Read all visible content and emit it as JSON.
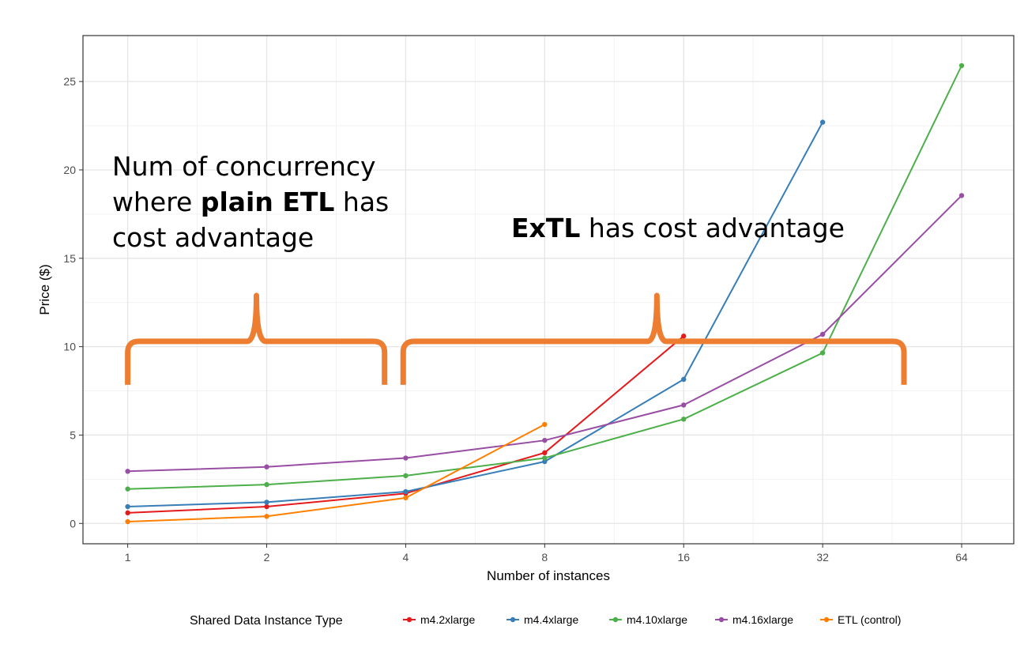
{
  "chart_data": {
    "type": "line",
    "x_scale": "log2",
    "xlabel": "Number of instances",
    "ylabel": "Price ($)",
    "x_ticks": [
      1,
      2,
      4,
      8,
      16,
      32,
      64
    ],
    "y_ticks": [
      0,
      5,
      10,
      15,
      20,
      25
    ],
    "xlim": [
      0.8,
      83
    ],
    "ylim": [
      -1.15,
      27.6
    ],
    "grid": true,
    "legend": {
      "title": "Shared Data Instance Type",
      "position": "bottom"
    },
    "series": [
      {
        "name": "m4.2xlarge",
        "color": "#E41A1C",
        "points": [
          [
            1,
            0.6
          ],
          [
            2,
            0.95
          ],
          [
            4,
            1.7
          ],
          [
            8,
            4.0
          ],
          [
            16,
            10.6
          ]
        ]
      },
      {
        "name": "m4.4xlarge",
        "color": "#377EB8",
        "points": [
          [
            1,
            0.95
          ],
          [
            2,
            1.2
          ],
          [
            4,
            1.8
          ],
          [
            8,
            3.5
          ],
          [
            16,
            8.15
          ],
          [
            32,
            22.7
          ]
        ]
      },
      {
        "name": "m4.10xlarge",
        "color": "#4DAF4A",
        "points": [
          [
            1,
            1.95
          ],
          [
            2,
            2.2
          ],
          [
            4,
            2.7
          ],
          [
            8,
            3.7
          ],
          [
            16,
            5.9
          ],
          [
            32,
            9.65
          ],
          [
            64,
            25.9
          ]
        ]
      },
      {
        "name": "m4.16xlarge",
        "color": "#984EA3",
        "points": [
          [
            1,
            2.95
          ],
          [
            2,
            3.2
          ],
          [
            4,
            3.7
          ],
          [
            8,
            4.7
          ],
          [
            16,
            6.7
          ],
          [
            32,
            10.7
          ],
          [
            64,
            18.55
          ]
        ]
      },
      {
        "name": "ETL (control)",
        "color": "#FF7F00",
        "points": [
          [
            1,
            0.1
          ],
          [
            2,
            0.4
          ],
          [
            4,
            1.45
          ],
          [
            8,
            5.6
          ]
        ]
      }
    ],
    "annotations": [
      {
        "lines": [
          [
            {
              "text": "Num of concurrency",
              "bold": false
            }
          ],
          [
            {
              "text": "where ",
              "bold": false
            },
            {
              "text": "plain ETL",
              "bold": true
            },
            {
              "text": " has",
              "bold": false
            }
          ],
          [
            {
              "text": "cost advantage",
              "bold": false
            }
          ]
        ]
      },
      {
        "lines": [
          [
            {
              "text": "ExTL",
              "bold": true
            },
            {
              "text": " has cost advantage",
              "bold": false
            }
          ]
        ]
      }
    ],
    "braces": [
      {
        "from_x": 1,
        "to_x": 3.6,
        "peak_x": 1.9,
        "y": 10.3,
        "color": "#ED7D31"
      },
      {
        "from_x": 3.95,
        "to_x": 48,
        "peak_x": 14,
        "y": 10.3,
        "color": "#ED7D31"
      }
    ]
  }
}
